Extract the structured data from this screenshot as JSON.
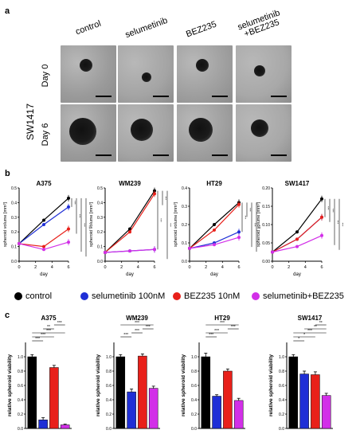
{
  "panel_labels": {
    "a": "a",
    "b": "b",
    "c": "c"
  },
  "panel_a": {
    "columns": [
      "control",
      "selumetinib",
      "BEZ235",
      "selumetinib\n+BEZ235"
    ],
    "cell_line": "SW1417",
    "rows": [
      "Day 0",
      "Day 6"
    ]
  },
  "legend": [
    {
      "label": "control",
      "color": "#000000"
    },
    {
      "label": "selumetinib 100nM",
      "color": "#1f2fd6"
    },
    {
      "label": "BEZ235 10nM",
      "color": "#e8201a"
    },
    {
      "label": "selumetinib+BEZ235",
      "color": "#d22fe8"
    }
  ],
  "colors": {
    "control": "#000000",
    "selumetinib": "#1f2fd6",
    "BEZ235": "#e8201a",
    "combo": "#d22fe8"
  },
  "chart_data": [
    {
      "type": "line",
      "title": "A375",
      "xlabel": "day",
      "ylabel": "spheroid volume [mm³]",
      "x": [
        0,
        3,
        6
      ],
      "xlim": [
        0,
        6
      ],
      "xticks": [
        "0",
        "2",
        "4",
        "6"
      ],
      "ylim": [
        0,
        0.5
      ],
      "yticks": [
        "0.0",
        "0.1",
        "0.2",
        "0.3",
        "0.4",
        "0.5"
      ],
      "series": [
        {
          "values": [
            0.12,
            0.28,
            0.43
          ]
        },
        {
          "values": [
            0.12,
            0.25,
            0.37
          ]
        },
        {
          "values": [
            0.12,
            0.1,
            0.22
          ]
        },
        {
          "values": [
            0.12,
            0.08,
            0.13
          ]
        }
      ],
      "significance": [
        "***",
        "***",
        "***",
        "***"
      ]
    },
    {
      "type": "line",
      "title": "WM239",
      "xlabel": "day",
      "ylabel": "spheroid volume [mm³]",
      "x": [
        0,
        3,
        6
      ],
      "xlim": [
        0,
        6
      ],
      "xticks": [
        "0",
        "2",
        "4",
        "6"
      ],
      "ylim": [
        0,
        0.5
      ],
      "yticks": [
        "0.0",
        "0.1",
        "0.2",
        "0.3",
        "0.4",
        "0.5"
      ],
      "series": [
        {
          "values": [
            0.06,
            0.22,
            0.48
          ]
        },
        {
          "values": [
            0.06,
            0.07,
            0.08
          ]
        },
        {
          "values": [
            0.06,
            0.2,
            0.46
          ]
        },
        {
          "values": [
            0.06,
            0.07,
            0.08
          ]
        }
      ],
      "significance": [
        "***",
        "***",
        "***"
      ]
    },
    {
      "type": "line",
      "title": "HT29",
      "xlabel": "day",
      "ylabel": "spheroid volume [mm³]",
      "x": [
        0,
        3,
        6
      ],
      "xlim": [
        0,
        6
      ],
      "xticks": [
        "0",
        "2",
        "4",
        "6"
      ],
      "ylim": [
        0,
        0.4
      ],
      "yticks": [
        "0.0",
        "0.1",
        "0.2",
        "0.3",
        "0.4"
      ],
      "series": [
        {
          "values": [
            0.07,
            0.2,
            0.32
          ]
        },
        {
          "values": [
            0.07,
            0.1,
            0.16
          ]
        },
        {
          "values": [
            0.07,
            0.17,
            0.31
          ]
        },
        {
          "values": [
            0.07,
            0.09,
            0.13
          ]
        }
      ],
      "significance": [
        "***",
        "***",
        "***",
        "***"
      ]
    },
    {
      "type": "line",
      "title": "SW1417",
      "xlabel": "day",
      "ylabel": "spheroid volume [mm³]",
      "x": [
        0,
        3,
        6
      ],
      "xlim": [
        0,
        6
      ],
      "xticks": [
        "0",
        "2",
        "4",
        "6"
      ],
      "ylim": [
        0,
        0.2
      ],
      "yticks": [
        "0.00",
        "0.05",
        "0.10",
        "0.15",
        "0.20"
      ],
      "series": [
        {
          "values": [
            0.025,
            0.08,
            0.17
          ]
        },
        {
          "values": [
            0.025,
            0.06,
            0.12
          ]
        },
        {
          "values": [
            0.025,
            0.06,
            0.12
          ]
        },
        {
          "values": [
            0.025,
            0.04,
            0.07
          ]
        }
      ],
      "significance": [
        "***",
        "***",
        "***",
        "***"
      ]
    },
    {
      "type": "bar",
      "title": "A375",
      "ylabel": "relative spheroid viability",
      "values": [
        1.0,
        0.12,
        0.85,
        0.05
      ],
      "errors": [
        0.03,
        0.03,
        0.03,
        0.01
      ],
      "ylim": [
        0,
        1.2
      ],
      "yticks": [
        "0.0",
        "0.2",
        "0.4",
        "0.6",
        "0.8",
        "1.0"
      ],
      "brackets": [
        {
          "a": 0,
          "b": 1,
          "label": "***"
        },
        {
          "a": 0,
          "b": 2,
          "label": "***"
        },
        {
          "a": 0,
          "b": 3,
          "label": "***"
        },
        {
          "a": 1,
          "b": 2,
          "label": "**"
        },
        {
          "a": 2,
          "b": 3,
          "label": "***"
        }
      ]
    },
    {
      "type": "bar",
      "title": "WM239",
      "ylabel": "relative spheroid viability",
      "values": [
        1.0,
        0.51,
        1.01,
        0.56
      ],
      "errors": [
        0.03,
        0.04,
        0.03,
        0.03
      ],
      "ylim": [
        0,
        1.2
      ],
      "yticks": [
        "0.0",
        "0.2",
        "0.4",
        "0.6",
        "0.8",
        "1.0"
      ],
      "brackets": [
        {
          "a": 0,
          "b": 1,
          "label": "***"
        },
        {
          "a": 1,
          "b": 2,
          "label": "***"
        },
        {
          "a": 2,
          "b": 3,
          "label": "***"
        },
        {
          "a": 0,
          "b": 3,
          "label": "***"
        }
      ]
    },
    {
      "type": "bar",
      "title": "HT29",
      "ylabel": "relative spheroid viability",
      "values": [
        1.0,
        0.45,
        0.8,
        0.39
      ],
      "errors": [
        0.05,
        0.02,
        0.03,
        0.03
      ],
      "ylim": [
        0,
        1.2
      ],
      "yticks": [
        "0.0",
        "0.2",
        "0.4",
        "0.6",
        "0.8",
        "1.0"
      ],
      "brackets": [
        {
          "a": 0,
          "b": 1,
          "label": "***"
        },
        {
          "a": 0,
          "b": 2,
          "label": "***"
        },
        {
          "a": 2,
          "b": 3,
          "label": "***"
        },
        {
          "a": 0,
          "b": 3,
          "label": "***"
        }
      ]
    },
    {
      "type": "bar",
      "title": "SW1417",
      "ylabel": "relative spheroid viability",
      "values": [
        1.0,
        0.76,
        0.75,
        0.46
      ],
      "errors": [
        0.03,
        0.04,
        0.04,
        0.03
      ],
      "ylim": [
        0,
        1.2
      ],
      "yticks": [
        "0.0",
        "0.2",
        "0.4",
        "0.6",
        "0.8",
        "1.0"
      ],
      "brackets": [
        {
          "a": 0,
          "b": 1,
          "label": "*"
        },
        {
          "a": 0,
          "b": 2,
          "label": "*"
        },
        {
          "a": 0,
          "b": 3,
          "label": "***"
        },
        {
          "a": 1,
          "b": 3,
          "label": "**"
        },
        {
          "a": 2,
          "b": 3,
          "label": "**"
        }
      ]
    }
  ]
}
